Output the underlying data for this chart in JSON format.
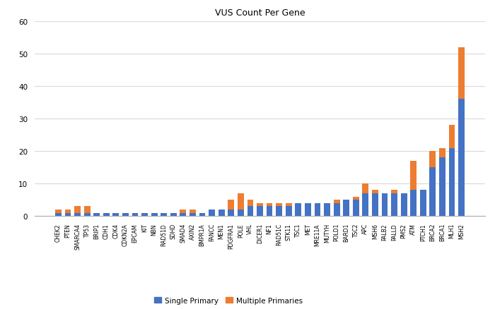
{
  "title": "VUS Count Per Gene",
  "genes": [
    "CHEK2",
    "PTEN",
    "SMARCA4",
    "TP53",
    "BRIP1",
    "CDH1",
    "CDK4",
    "CDKN2A",
    "EPCAM",
    "KIT",
    "NBN",
    "RAD51D",
    "SDHD",
    "SMAD4",
    "AXIN2",
    "BMPR1A",
    "FANCC",
    "MEN1",
    "PDGFRA1",
    "POLE",
    "VHL",
    "DICER1",
    "NF1",
    "RAD51C",
    "STK11",
    "TSC1",
    "MET",
    "MRE11A",
    "MUTYH",
    "POLD1",
    "BARD1",
    "TSC2",
    "APC",
    "MSH6",
    "PALB2",
    "PALLD",
    "PMS2",
    "ATM",
    "PTCH1",
    "BRCA2",
    "BRCA1",
    "MLH1",
    "MSH2"
  ],
  "single_primary": [
    1,
    1,
    1,
    1,
    1,
    1,
    1,
    1,
    1,
    1,
    1,
    1,
    1,
    1,
    1,
    1,
    2,
    2,
    2,
    2,
    3,
    3,
    3,
    3,
    3,
    4,
    4,
    4,
    4,
    4,
    5,
    5,
    7,
    7,
    7,
    7,
    7,
    8,
    8,
    15,
    18,
    21,
    36
  ],
  "multiple_primaries": [
    1,
    1,
    2,
    2,
    0,
    0,
    0,
    0,
    0,
    0,
    0,
    0,
    0,
    1,
    1,
    0,
    0,
    0,
    3,
    5,
    2,
    1,
    1,
    1,
    1,
    0,
    0,
    0,
    0,
    1,
    0,
    1,
    3,
    1,
    0,
    1,
    0,
    9,
    0,
    5,
    3,
    7,
    16
  ],
  "single_color": "#4472c4",
  "multiple_color": "#ed7d31",
  "legend_single": "Single Primary",
  "legend_multiple": "Multiple Primaries",
  "ylim": [
    0,
    60
  ],
  "yticks": [
    0,
    10,
    20,
    30,
    40,
    50,
    60
  ],
  "background_color": "#ffffff",
  "grid_color": "#d9d9d9",
  "title_fontsize": 9,
  "tick_label_fontsize": 5.5,
  "ytick_fontsize": 7.5,
  "legend_fontsize": 7.5,
  "bar_width": 0.65
}
